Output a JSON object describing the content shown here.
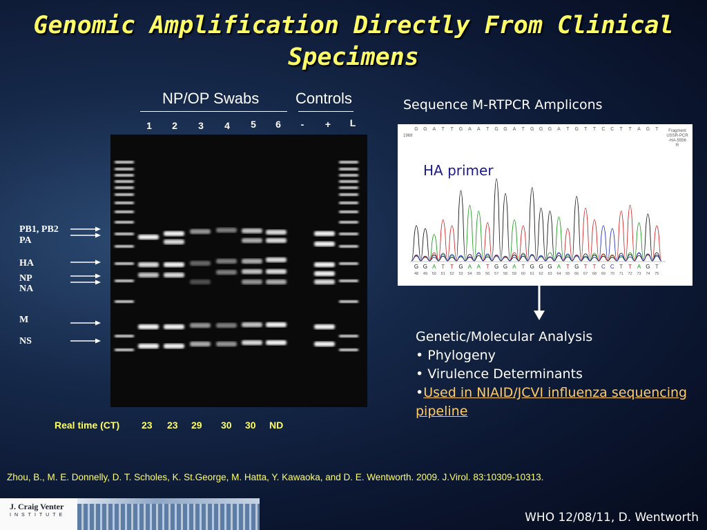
{
  "title": "Genomic Amplification Directly From Clinical Specimens",
  "gel": {
    "group_labels": [
      "NP/OP Swabs",
      "Controls"
    ],
    "lanes": [
      "1",
      "2",
      "3",
      "4",
      "5",
      "6",
      "-",
      "+",
      "L"
    ],
    "segment_labels": [
      "PB1, PB2",
      "PA",
      "HA",
      "NP",
      "NA",
      "M",
      "NS"
    ],
    "ct_label": "Real time (CT)",
    "ct_values": [
      23,
      23,
      29,
      30,
      30,
      "ND"
    ]
  },
  "chromatogram": {
    "title": "Sequence M-RTPCR Amplicons",
    "primer_label": "HA primer",
    "scale_label": "1969",
    "fragment_label": [
      "Fragment",
      "USSR-PCR",
      "-HA-5556",
      "R"
    ],
    "sequence": [
      "G",
      "G",
      "A",
      "T",
      "T",
      "G",
      "A",
      "A",
      "T",
      "G",
      "G",
      "A",
      "T",
      "G",
      "G",
      "G",
      "A",
      "T",
      "G",
      "T",
      "T",
      "C",
      "C",
      "T",
      "T",
      "A",
      "G",
      "T"
    ],
    "positions": [
      48,
      49,
      50,
      51,
      52,
      53,
      54,
      55,
      56,
      57,
      58,
      59,
      60,
      61,
      62,
      63,
      64,
      65,
      66,
      67,
      68,
      69,
      70,
      71,
      72,
      73,
      74,
      75
    ]
  },
  "analysis": {
    "heading": "Genetic/Molecular Analysis",
    "items": [
      "• Phylogeny",
      "• Virulence Determinants"
    ],
    "link_bullet": "•",
    "link": "Used in NIAID/JCVI influenza sequencing pipeline"
  },
  "citation": "Zhou, B., M. E. Donnelly, D. T. Scholes, K. St.George, M. Hatta, Y. Kawaoka, and D. E. Wentworth. 2009. J.Virol. 83:10309-10313.",
  "footer": {
    "logo_name": "J. Craig Venter",
    "logo_sub": "INSTITUTE",
    "credit": "WHO 12/08/11, D. Wentworth"
  }
}
